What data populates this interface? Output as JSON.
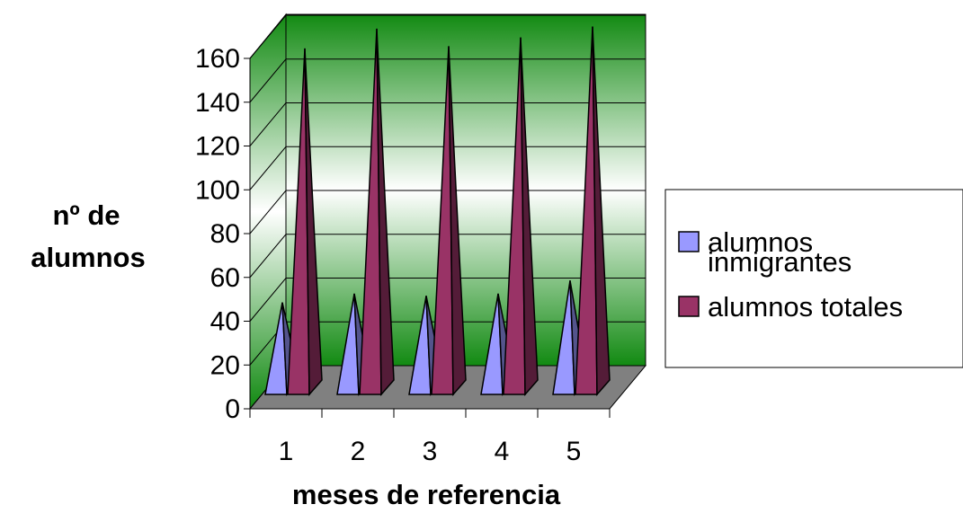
{
  "chart_data": {
    "type": "bar",
    "style": "3d-pyramid",
    "title": "",
    "xlabel": "meses de referencia",
    "ylabel_lines": [
      "nº de",
      "alumnos"
    ],
    "categories": [
      "1",
      "2",
      "3",
      "4",
      "5"
    ],
    "ylim": [
      0,
      160
    ],
    "yticks": [
      "0",
      "20",
      "40",
      "60",
      "80",
      "100",
      "120",
      "140",
      "160"
    ],
    "grid": true,
    "legend_position": "right",
    "series": [
      {
        "name": "alumnos inmigrantes",
        "legend_lines": [
          "alumnos",
          "inmigrantes"
        ],
        "values": [
          42,
          46,
          45,
          46,
          52
        ],
        "color": "#9999ff"
      },
      {
        "name": "alumnos totales",
        "legend_lines": [
          "alumnos totales"
        ],
        "values": [
          158,
          167,
          159,
          163,
          168
        ],
        "color": "#993366"
      }
    ],
    "colors": {
      "wall_top": "#128a12",
      "wall_mid": "#ffffff",
      "floor": "#808080"
    }
  }
}
